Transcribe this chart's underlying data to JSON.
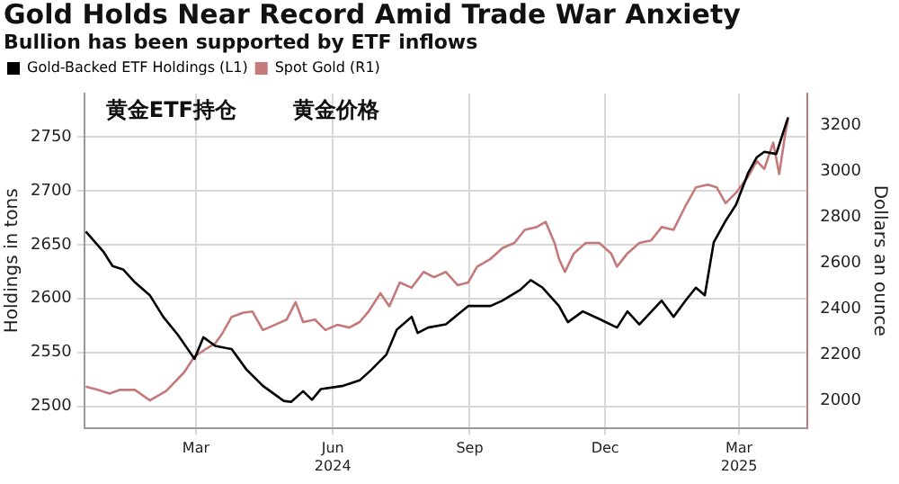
{
  "chart_data": {
    "type": "line",
    "title": "Gold Holds Near Record Amid Trade War Anxiety",
    "subtitle": "Bullion has been supported by ETF inflows",
    "ylabel": "Holdings in tons",
    "y2label": "Dollars an ounce",
    "annotations": [
      "黄金ETF持仓",
      "黄金价格"
    ],
    "xlim": [
      "2023-12-17",
      "2025-04-16"
    ],
    "xticks": [
      {
        "value": "2024-03-01",
        "label": "Mar"
      },
      {
        "value": "2024-06-01",
        "label": "Jun\n2024"
      },
      {
        "value": "2024-09-01",
        "label": "Sep"
      },
      {
        "value": "2024-12-01",
        "label": "Dec"
      },
      {
        "value": "2025-03-01",
        "label": "Mar\n2025"
      }
    ],
    "ylim": [
      2480,
      2790
    ],
    "yticks": [
      2500,
      2550,
      2600,
      2650,
      2700,
      2750
    ],
    "y2lim": [
      1880,
      3340
    ],
    "y2ticks": [
      2000,
      2200,
      2400,
      2600,
      2800,
      3000,
      3200
    ],
    "grid": true,
    "legend": "top left",
    "line_style": "solid",
    "marker": "none",
    "series": [
      {
        "name": "Gold-Backed ETF Holdings (L1)",
        "color": "#000000",
        "x": [
          "2023-12-18",
          "2023-12-30",
          "2024-01-05",
          "2024-01-12",
          "2024-01-20",
          "2024-01-30",
          "2024-02-08",
          "2024-02-18",
          "2024-02-29",
          "2024-03-06",
          "2024-03-14",
          "2024-03-25",
          "2024-04-04",
          "2024-04-15",
          "2024-04-29",
          "2024-05-04",
          "2024-05-12",
          "2024-05-18",
          "2024-05-24",
          "2024-06-08",
          "2024-06-19",
          "2024-06-27",
          "2024-07-07",
          "2024-07-14",
          "2024-07-24",
          "2024-07-28",
          "2024-08-04",
          "2024-08-16",
          "2024-08-31",
          "2024-09-15",
          "2024-09-23",
          "2024-10-05",
          "2024-10-12",
          "2024-10-20",
          "2024-10-31",
          "2024-11-06",
          "2024-11-16",
          "2024-11-27",
          "2024-12-09",
          "2024-12-16",
          "2024-12-24",
          "2025-01-08",
          "2025-01-16",
          "2025-01-24",
          "2025-01-31",
          "2025-02-06",
          "2025-02-12",
          "2025-02-20",
          "2025-02-27",
          "2025-03-07",
          "2025-03-13",
          "2025-03-18",
          "2025-03-26",
          "2025-03-30",
          "2025-04-03"
        ],
        "values": [
          2662,
          2643,
          2630,
          2627,
          2615,
          2603,
          2583,
          2566,
          2544,
          2564,
          2556,
          2553,
          2534,
          2519,
          2505,
          2504,
          2514,
          2506,
          2516,
          2519,
          2524,
          2534,
          2548,
          2571,
          2583,
          2568,
          2573,
          2576,
          2593,
          2593,
          2598,
          2608,
          2617,
          2610,
          2593,
          2578,
          2588,
          2581,
          2573,
          2588,
          2576,
          2598,
          2583,
          2598,
          2610,
          2603,
          2652,
          2672,
          2687,
          2716,
          2731,
          2736,
          2734,
          2751,
          2768
        ]
      },
      {
        "name": "Spot Gold (R1)",
        "color": "#c47a7a",
        "axis": "y2",
        "x": [
          "2023-12-18",
          "2023-12-26",
          "2024-01-03",
          "2024-01-10",
          "2024-01-20",
          "2024-01-30",
          "2024-02-10",
          "2024-02-22",
          "2024-02-29",
          "2024-03-08",
          "2024-03-14",
          "2024-03-19",
          "2024-03-25",
          "2024-04-02",
          "2024-04-08",
          "2024-04-15",
          "2024-04-23",
          "2024-05-01",
          "2024-05-07",
          "2024-05-12",
          "2024-05-20",
          "2024-05-27",
          "2024-06-04",
          "2024-06-12",
          "2024-06-19",
          "2024-06-25",
          "2024-07-03",
          "2024-07-09",
          "2024-07-16",
          "2024-07-24",
          "2024-08-01",
          "2024-08-08",
          "2024-08-16",
          "2024-08-24",
          "2024-08-31",
          "2024-09-06",
          "2024-09-15",
          "2024-09-23",
          "2024-10-01",
          "2024-10-08",
          "2024-10-16",
          "2024-10-22",
          "2024-10-28",
          "2024-10-31",
          "2024-11-04",
          "2024-11-10",
          "2024-11-18",
          "2024-11-27",
          "2024-12-05",
          "2024-12-09",
          "2024-12-16",
          "2024-12-24",
          "2025-01-01",
          "2025-01-08",
          "2025-01-16",
          "2025-01-24",
          "2025-01-31",
          "2025-02-08",
          "2025-02-14",
          "2025-02-20",
          "2025-02-27",
          "2025-03-07",
          "2025-03-13",
          "2025-03-18",
          "2025-03-24",
          "2025-03-28",
          "2025-04-01",
          "2025-04-03"
        ],
        "values": [
          2060,
          2046,
          2030,
          2046,
          2046,
          2000,
          2041,
          2122,
          2191,
          2226,
          2249,
          2295,
          2365,
          2383,
          2388,
          2307,
          2330,
          2353,
          2429,
          2342,
          2353,
          2307,
          2330,
          2318,
          2342,
          2388,
          2468,
          2411,
          2515,
          2492,
          2561,
          2538,
          2561,
          2503,
          2515,
          2584,
          2618,
          2665,
          2688,
          2745,
          2757,
          2780,
          2688,
          2618,
          2561,
          2642,
          2688,
          2688,
          2642,
          2584,
          2642,
          2688,
          2699,
          2757,
          2745,
          2849,
          2930,
          2942,
          2930,
          2861,
          2907,
          2976,
          3045,
          3011,
          3126,
          2988,
          3161,
          3230
        ]
      }
    ]
  }
}
